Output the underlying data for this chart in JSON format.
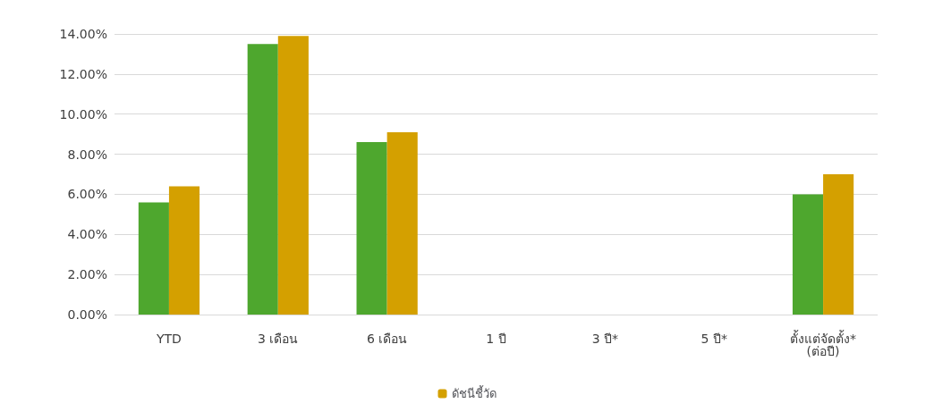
{
  "chart_data": {
    "type": "bar",
    "categories": [
      "YTD",
      "3 เดือน",
      "6 เดือน",
      "1 ปี",
      "3 ปี*",
      "5 ปี*",
      "ตั้งแต่จัดตั้ง*\n(ต่อปี)"
    ],
    "series": [
      {
        "color": "#4ea72e",
        "values": [
          5.6,
          13.5,
          8.6,
          0,
          0,
          0,
          6.0
        ]
      },
      {
        "name": "ดัชนีชี้วัด",
        "color": "#d4a000",
        "values": [
          6.4,
          13.9,
          9.1,
          0,
          0,
          0,
          7.0
        ]
      }
    ],
    "ylim": [
      0,
      14
    ],
    "yticks": [
      {
        "value": 0,
        "label": "0.00%"
      },
      {
        "value": 2,
        "label": "2.00%"
      },
      {
        "value": 4,
        "label": "4.00%"
      },
      {
        "value": 6,
        "label": "6.00%"
      },
      {
        "value": 8,
        "label": "8.00%"
      },
      {
        "value": 10,
        "label": "10.00%"
      },
      {
        "value": 12,
        "label": "12.00%"
      },
      {
        "value": 14,
        "label": "14.00%"
      }
    ],
    "grid": "y",
    "legend": "bottom"
  }
}
